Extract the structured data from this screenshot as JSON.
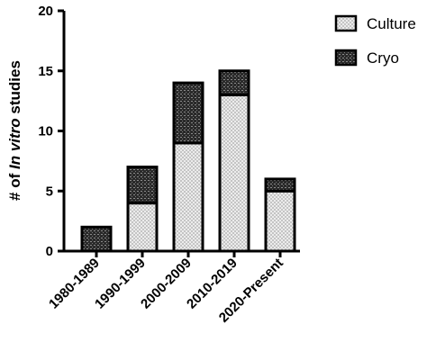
{
  "chart_data": {
    "type": "bar",
    "stacked": true,
    "categories": [
      "1980-1989",
      "1990-1999",
      "2000-2009",
      "2010-2019",
      "2020-Present"
    ],
    "series": [
      {
        "name": "Culture",
        "values": [
          0,
          4,
          9,
          13,
          5
        ],
        "pattern": "light-checker"
      },
      {
        "name": "Cryo",
        "values": [
          2,
          3,
          5,
          2,
          1
        ],
        "pattern": "dark-checker"
      }
    ],
    "ylabel_parts": [
      "# of ",
      "In vitro",
      " studies"
    ],
    "xlabel": "",
    "title": "",
    "ylim": [
      0,
      20
    ],
    "yticks": [
      "0",
      "5",
      "10",
      "15",
      "20"
    ],
    "grid": false,
    "legend_position": "top-right"
  }
}
